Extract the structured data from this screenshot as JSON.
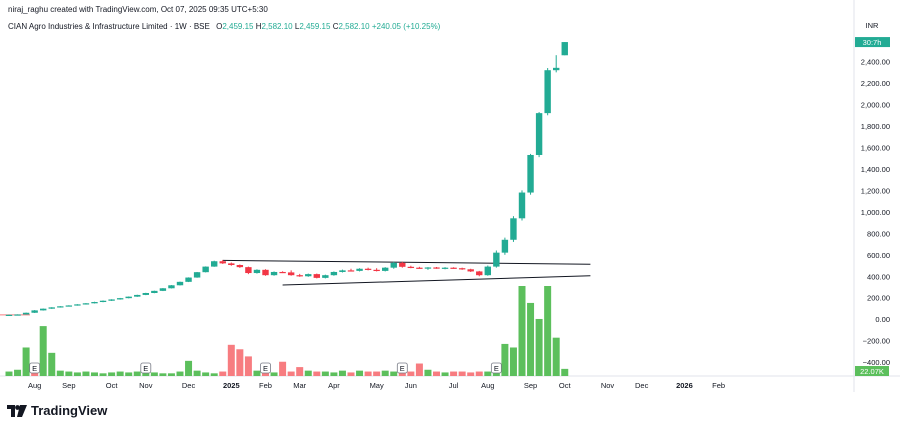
{
  "header": {
    "attribution": "niraj_raghu created with TradingView.com, Oct 07, 2025 09:35 UTC+5:30",
    "symbol": "CIAN Agro Industries & Infrastructure Limited · 1W · BSE",
    "open_label": "O",
    "open": "2,459.15",
    "high_label": "H",
    "high": "2,582.10",
    "low_label": "L",
    "low": "2,459.15",
    "close_label": "C",
    "close": "2,582.10",
    "change": "+240.05 (+10.25%)"
  },
  "logo_text": "TradingView",
  "colors": {
    "up": "#22ab94",
    "down": "#f23645",
    "vol_up": "#5cbf5c",
    "vol_down": "#f77c80",
    "line": "#131722"
  },
  "chart_data": {
    "type": "candlestick",
    "currency": "INR",
    "y_ticks": [
      2400,
      2200,
      2000,
      1800,
      1600,
      1400,
      1200,
      1000,
      800,
      600,
      400,
      200,
      0,
      -200,
      -400
    ],
    "y_tick_labels": [
      "2,400.00",
      "2,200.00",
      "2,000.00",
      "1,800.00",
      "1,600.00",
      "1,400.00",
      "1,200.00",
      "1,000.00",
      "800.00",
      "600.00",
      "400.00",
      "200.00",
      "0.00",
      "−200.00",
      "−400.00"
    ],
    "ylim": [
      -520,
      2620
    ],
    "price_tag": "30:7h",
    "volume_tag": "22.07K",
    "x_labels": [
      {
        "label": "Aug",
        "bar": 3,
        "bold": false
      },
      {
        "label": "Sep",
        "bar": 7,
        "bold": false
      },
      {
        "label": "Oct",
        "bar": 12,
        "bold": false
      },
      {
        "label": "Nov",
        "bar": 16,
        "bold": false
      },
      {
        "label": "Dec",
        "bar": 21,
        "bold": false
      },
      {
        "label": "2025",
        "bar": 26,
        "bold": true
      },
      {
        "label": "Feb",
        "bar": 30,
        "bold": false
      },
      {
        "label": "Mar",
        "bar": 34,
        "bold": false
      },
      {
        "label": "Apr",
        "bar": 38,
        "bold": false
      },
      {
        "label": "May",
        "bar": 43,
        "bold": false
      },
      {
        "label": "Jun",
        "bar": 47,
        "bold": false
      },
      {
        "label": "Jul",
        "bar": 52,
        "bold": false
      },
      {
        "label": "Aug",
        "bar": 56,
        "bold": false
      },
      {
        "label": "Sep",
        "bar": 61,
        "bold": false
      },
      {
        "label": "Oct",
        "bar": 65,
        "bold": false
      },
      {
        "label": "Nov",
        "bar": 70,
        "bold": false
      },
      {
        "label": "Dec",
        "bar": 74,
        "bold": false
      },
      {
        "label": "2026",
        "bar": 79,
        "bold": true
      },
      {
        "label": "Feb",
        "bar": 83,
        "bold": false
      }
    ],
    "earnings_bars": [
      3,
      16,
      30,
      46,
      57
    ],
    "earnings_label": "E",
    "candles": [
      [
        40,
        42,
        39,
        41
      ],
      [
        42,
        45,
        41,
        44
      ],
      [
        44,
        62,
        43,
        60
      ],
      [
        60,
        85,
        58,
        82
      ],
      [
        82,
        100,
        80,
        98
      ],
      [
        98,
        112,
        96,
        110
      ],
      [
        110,
        122,
        108,
        120
      ],
      [
        120,
        130,
        118,
        128
      ],
      [
        128,
        140,
        126,
        138
      ],
      [
        138,
        150,
        136,
        148
      ],
      [
        148,
        162,
        146,
        160
      ],
      [
        160,
        175,
        158,
        172
      ],
      [
        172,
        186,
        170,
        184
      ],
      [
        184,
        198,
        182,
        196
      ],
      [
        196,
        212,
        194,
        210
      ],
      [
        210,
        228,
        208,
        226
      ],
      [
        226,
        246,
        224,
        244
      ],
      [
        244,
        266,
        242,
        264
      ],
      [
        264,
        290,
        262,
        288
      ],
      [
        288,
        318,
        286,
        316
      ],
      [
        316,
        350,
        314,
        348
      ],
      [
        348,
        390,
        346,
        388
      ],
      [
        388,
        440,
        386,
        438
      ],
      [
        438,
        492,
        436,
        490
      ],
      [
        490,
        545,
        488,
        540
      ],
      [
        540,
        552,
        515,
        520
      ],
      [
        520,
        528,
        498,
        505
      ],
      [
        505,
        510,
        478,
        485
      ],
      [
        485,
        490,
        420,
        430
      ],
      [
        430,
        465,
        425,
        460
      ],
      [
        460,
        465,
        405,
        410
      ],
      [
        410,
        445,
        405,
        440
      ],
      [
        440,
        446,
        430,
        436
      ],
      [
        436,
        455,
        405,
        410
      ],
      [
        410,
        422,
        395,
        400
      ],
      [
        400,
        425,
        395,
        420
      ],
      [
        420,
        425,
        380,
        385
      ],
      [
        385,
        415,
        380,
        410
      ],
      [
        410,
        445,
        405,
        440
      ],
      [
        440,
        462,
        435,
        455
      ],
      [
        455,
        470,
        445,
        450
      ],
      [
        450,
        475,
        445,
        470
      ],
      [
        470,
        480,
        455,
        460
      ],
      [
        460,
        475,
        445,
        450
      ],
      [
        450,
        485,
        445,
        480
      ],
      [
        480,
        535,
        470,
        525
      ],
      [
        525,
        535,
        480,
        488
      ],
      [
        488,
        498,
        475,
        480
      ],
      [
        480,
        488,
        470,
        475
      ],
      [
        475,
        485,
        460,
        482
      ],
      [
        482,
        486,
        470,
        472
      ],
      [
        472,
        485,
        465,
        480
      ],
      [
        480,
        484,
        470,
        475
      ],
      [
        475,
        480,
        460,
        465
      ],
      [
        465,
        470,
        440,
        445
      ],
      [
        445,
        450,
        400,
        410
      ],
      [
        410,
        500,
        405,
        490
      ],
      [
        490,
        640,
        480,
        620
      ],
      [
        620,
        760,
        600,
        740
      ],
      [
        740,
        960,
        720,
        940
      ],
      [
        940,
        1200,
        920,
        1180
      ],
      [
        1180,
        1540,
        1160,
        1530
      ],
      [
        1530,
        1930,
        1510,
        1920
      ],
      [
        1920,
        2340,
        1900,
        2320
      ],
      [
        2320,
        2460,
        2300,
        2342
      ]
    ],
    "candle_last": [
      2459.15,
      2582.1,
      2459.15,
      2582.1
    ],
    "volume_k": [
      1.5,
      1.5,
      3,
      4,
      2,
      1,
      1,
      1,
      1,
      1,
      1,
      1,
      1,
      1,
      1,
      1,
      1,
      3,
      1,
      2,
      1,
      1,
      1,
      1,
      1,
      1,
      1,
      1,
      1,
      1,
      1,
      1,
      1,
      1,
      1,
      1,
      1,
      1,
      1,
      1,
      1,
      1,
      1,
      1,
      1,
      1,
      1,
      1,
      1,
      1,
      1,
      1,
      1,
      1,
      1,
      1,
      1,
      1,
      1,
      1,
      1,
      1,
      1,
      1,
      1
    ],
    "volume_values": [
      5,
      7,
      32,
      4,
      56,
      26,
      6,
      5,
      4,
      5,
      4,
      3,
      4,
      5,
      4,
      5,
      6,
      4,
      3,
      3,
      5,
      17,
      6,
      4,
      3,
      5,
      35,
      30,
      22,
      6,
      5,
      4,
      16,
      5,
      10,
      6,
      5,
      5,
      4,
      6,
      4,
      6,
      5,
      5,
      6,
      5,
      4,
      5,
      14,
      7,
      5,
      4,
      5,
      5,
      4,
      5,
      5,
      6,
      36,
      32,
      101,
      82,
      64,
      101,
      43,
      8
    ],
    "volume_up": [
      true,
      true,
      true,
      false,
      true,
      true,
      true,
      true,
      true,
      true,
      true,
      true,
      true,
      true,
      true,
      true,
      true,
      true,
      true,
      true,
      true,
      true,
      true,
      true,
      true,
      false,
      false,
      false,
      false,
      true,
      false,
      true,
      false,
      false,
      false,
      true,
      false,
      true,
      true,
      true,
      false,
      true,
      false,
      false,
      true,
      true,
      false,
      false,
      false,
      true,
      false,
      true,
      false,
      false,
      false,
      false,
      true,
      true,
      true,
      true,
      true,
      true,
      true,
      true,
      true,
      true
    ],
    "channel_upper": {
      "from_bar": 25,
      "from": 548,
      "to_bar": 68,
      "to": 512
    },
    "channel_lower": {
      "from_bar": 32,
      "from": 318,
      "to_bar": 68,
      "to": 405
    }
  }
}
